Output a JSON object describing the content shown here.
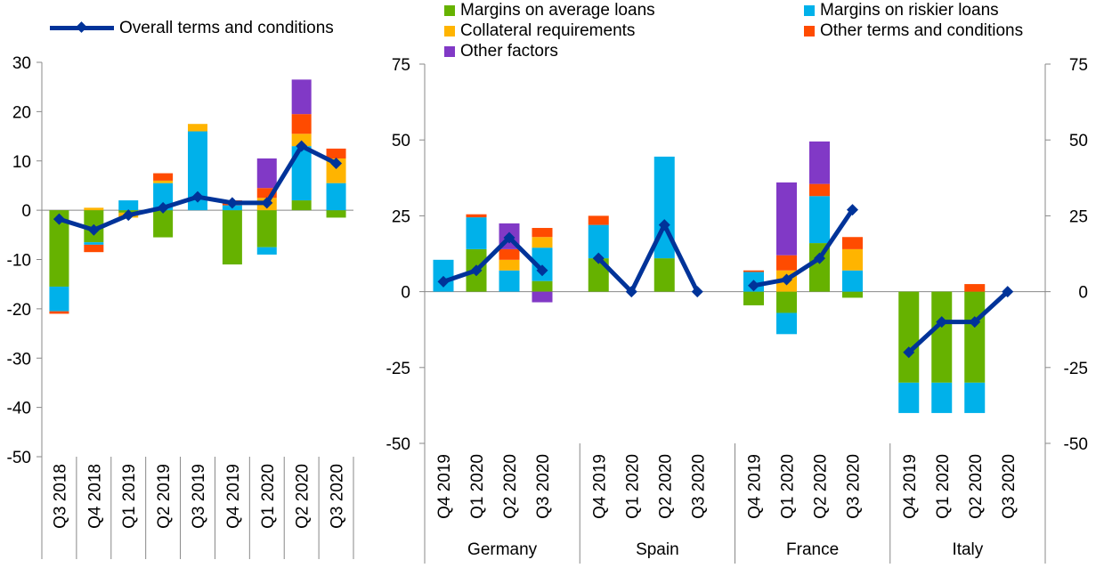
{
  "colors": {
    "margins_average": "#66b200",
    "margins_riskier": "#00b1ea",
    "collateral": "#ffb400",
    "other_terms": "#ff4b00",
    "other_factors": "#8139c6",
    "overall": "#003399"
  },
  "legend": {
    "overall": "Overall terms and conditions",
    "margins_average": "Margins on average loans",
    "margins_riskier": "Margins on riskier loans",
    "collateral": "Collateral requirements",
    "other_terms": "Other terms and conditions",
    "other_factors": "Other factors"
  },
  "chart_data": [
    {
      "type": "bar",
      "stacked": true,
      "ylim": [
        -50,
        30
      ],
      "yticks": [
        30,
        20,
        10,
        0,
        -10,
        -20,
        -30,
        -40,
        -50
      ],
      "categories": [
        "Q3 2018",
        "Q4 2018",
        "Q1 2019",
        "Q2 2019",
        "Q3 2019",
        "Q4 2019",
        "Q1 2020",
        "Q2 2020",
        "Q3 2020"
      ],
      "series": [
        {
          "name": "Margins on average loans",
          "key": "margins_average",
          "values": [
            -15.5,
            -6.5,
            -0.5,
            -5.5,
            0,
            -11,
            -7.5,
            2,
            -1.5
          ]
        },
        {
          "name": "Margins on riskier loans",
          "key": "margins_riskier",
          "values": [
            -5,
            -0.5,
            2,
            5.5,
            16,
            1,
            -1.5,
            11,
            5.5
          ]
        },
        {
          "name": "Collateral requirements",
          "key": "collateral",
          "values": [
            0,
            0.5,
            -1,
            0.5,
            1.5,
            0,
            2.5,
            2.5,
            5
          ]
        },
        {
          "name": "Other terms and conditions",
          "key": "other_terms",
          "values": [
            -0.5,
            -1.5,
            0,
            1.5,
            0,
            1,
            2,
            4,
            2
          ]
        },
        {
          "name": "Other factors",
          "key": "other_factors",
          "values": [
            0,
            0,
            0,
            0,
            0,
            0,
            6,
            7,
            0
          ]
        }
      ],
      "line": {
        "name": "Overall terms and conditions",
        "values": [
          -1.8,
          -4,
          -1,
          0.5,
          2.7,
          1.5,
          1.5,
          13,
          9.5
        ]
      }
    },
    {
      "type": "bar",
      "stacked": true,
      "ylim": [
        -50,
        75
      ],
      "yticks": [
        75,
        50,
        25,
        0,
        -25,
        -50
      ],
      "groups": [
        {
          "name": "Germany",
          "categories": [
            "Q4 2019",
            "Q1 2020",
            "Q2 2020",
            "Q3 2020"
          ],
          "segments": {
            "margins_average": [
              0,
              14,
              0,
              3.5
            ],
            "margins_riskier": [
              10.5,
              10.5,
              7,
              11
            ],
            "collateral": [
              0,
              0,
              3.5,
              3.5
            ],
            "other_terms": [
              0,
              1,
              3.5,
              3
            ],
            "other_factors": [
              0,
              0,
              8.5,
              -3.5
            ]
          },
          "line": [
            3.3,
            7,
            17.8,
            7
          ]
        },
        {
          "name": "Spain",
          "categories": [
            "Q4 2019",
            "Q1 2020",
            "Q2 2020",
            "Q3 2020"
          ],
          "segments": {
            "margins_average": [
              11,
              0,
              11,
              0
            ],
            "margins_riskier": [
              11,
              0,
              33.5,
              0
            ],
            "collateral": [
              0,
              0,
              0,
              0
            ],
            "other_terms": [
              3,
              0,
              0,
              0
            ],
            "other_factors": [
              0,
              0,
              0,
              0
            ]
          },
          "line": [
            11,
            0,
            22,
            0
          ]
        },
        {
          "name": "France",
          "categories": [
            "Q4 2019",
            "Q1 2020",
            "Q2 2020",
            "Q3 2020"
          ],
          "segments": {
            "margins_average": [
              -4.5,
              -7,
              16,
              -2
            ],
            "margins_riskier": [
              6.5,
              -7,
              15.5,
              7
            ],
            "collateral": [
              0,
              7,
              0,
              7
            ],
            "other_terms": [
              0.5,
              5,
              4,
              4
            ],
            "other_factors": [
              0,
              24,
              14,
              0
            ]
          },
          "line": [
            2,
            4,
            11,
            27
          ]
        },
        {
          "name": "Italy",
          "categories": [
            "Q4 2019",
            "Q1 2020",
            "Q2 2020",
            "Q3 2020"
          ],
          "segments": {
            "margins_average": [
              -30,
              -30,
              -30,
              0
            ],
            "margins_riskier": [
              -10,
              -10,
              -10,
              0
            ],
            "collateral": [
              0,
              0,
              0,
              0
            ],
            "other_terms": [
              0,
              0,
              2.5,
              0
            ],
            "other_factors": [
              0,
              0,
              0,
              0
            ]
          },
          "line": [
            -20,
            -10,
            -10,
            0
          ]
        }
      ]
    }
  ]
}
